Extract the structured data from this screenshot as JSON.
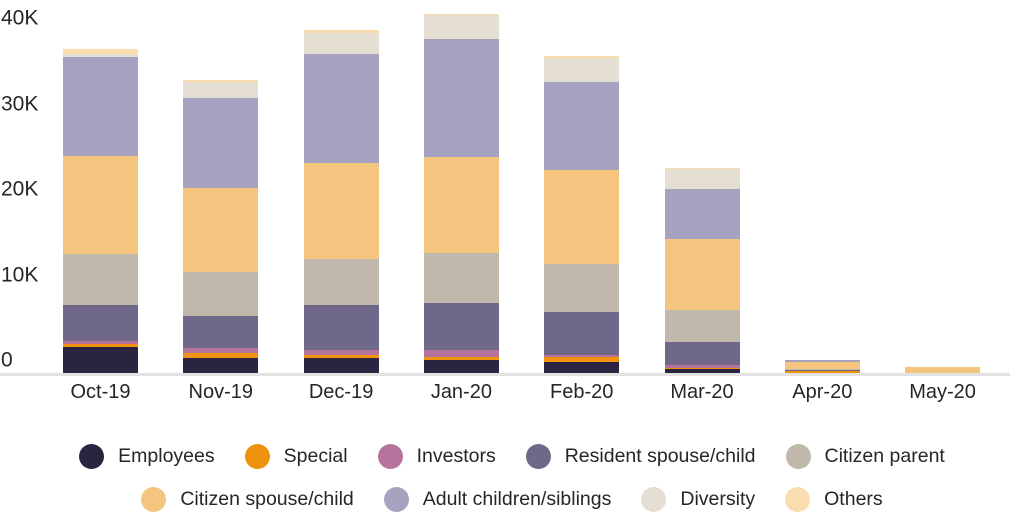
{
  "chart_data": {
    "type": "bar",
    "stacked": true,
    "title": "",
    "xlabel": "",
    "ylabel": "",
    "grid": false,
    "legend_position": "bottom",
    "categories": [
      "Oct-19",
      "Nov-19",
      "Dec-19",
      "Jan-20",
      "Feb-20",
      "Mar-20",
      "Apr-20",
      "May-20"
    ],
    "series": [
      {
        "name": "Employees",
        "color": "#2b2440",
        "values": [
          2900,
          1700,
          1700,
          1450,
          1250,
          450,
          50,
          0
        ]
      },
      {
        "name": "Special",
        "color": "#ef930e",
        "values": [
          400,
          550,
          350,
          350,
          550,
          100,
          150,
          50
        ]
      },
      {
        "name": "Investors",
        "color": "#b4749c",
        "values": [
          260,
          550,
          550,
          800,
          250,
          350,
          0,
          0
        ]
      },
      {
        "name": "Resident spouse/child",
        "color": "#6f6889",
        "values": [
          4100,
          3600,
          5100,
          5300,
          4850,
          2600,
          100,
          0
        ]
      },
      {
        "name": "Citizen parent",
        "color": "#c0b8ab",
        "values": [
          5700,
          5000,
          5200,
          5650,
          5400,
          3600,
          150,
          0
        ]
      },
      {
        "name": "Citizen spouse/child",
        "color": "#f3c57f",
        "values": [
          11100,
          9500,
          10750,
          10750,
          10600,
          8000,
          800,
          650
        ]
      },
      {
        "name": "Adult children/siblings",
        "color": "#a8a2c1",
        "values": [
          11200,
          10050,
          12300,
          13350,
          9850,
          5650,
          250,
          0
        ]
      },
      {
        "name": "Diversity",
        "color": "#e5ded3",
        "values": [
          300,
          1800,
          2400,
          2700,
          2700,
          2250,
          0,
          0
        ]
      },
      {
        "name": "Others",
        "color": "#f9ddae",
        "values": [
          500,
          250,
          250,
          100,
          250,
          100,
          0,
          0
        ]
      }
    ],
    "y_axis": {
      "min": 0,
      "max": 40000,
      "ticks": [
        {
          "value": 40000,
          "label": "40K"
        },
        {
          "value": 30000,
          "label": "30K"
        },
        {
          "value": 20000,
          "label": "20K"
        },
        {
          "value": 10000,
          "label": "10K"
        },
        {
          "value": 0,
          "label": "0"
        }
      ]
    },
    "legend_rows": [
      [
        "Employees",
        "Special",
        "Investors",
        "Resident spouse/child",
        "Citizen parent"
      ],
      [
        "Citizen spouse/child",
        "Adult children/siblings",
        "Diversity",
        "Others"
      ]
    ]
  },
  "colors": {
    "background": "#ffffff",
    "axis_line": "#e2e2e2",
    "text": "#262626"
  }
}
